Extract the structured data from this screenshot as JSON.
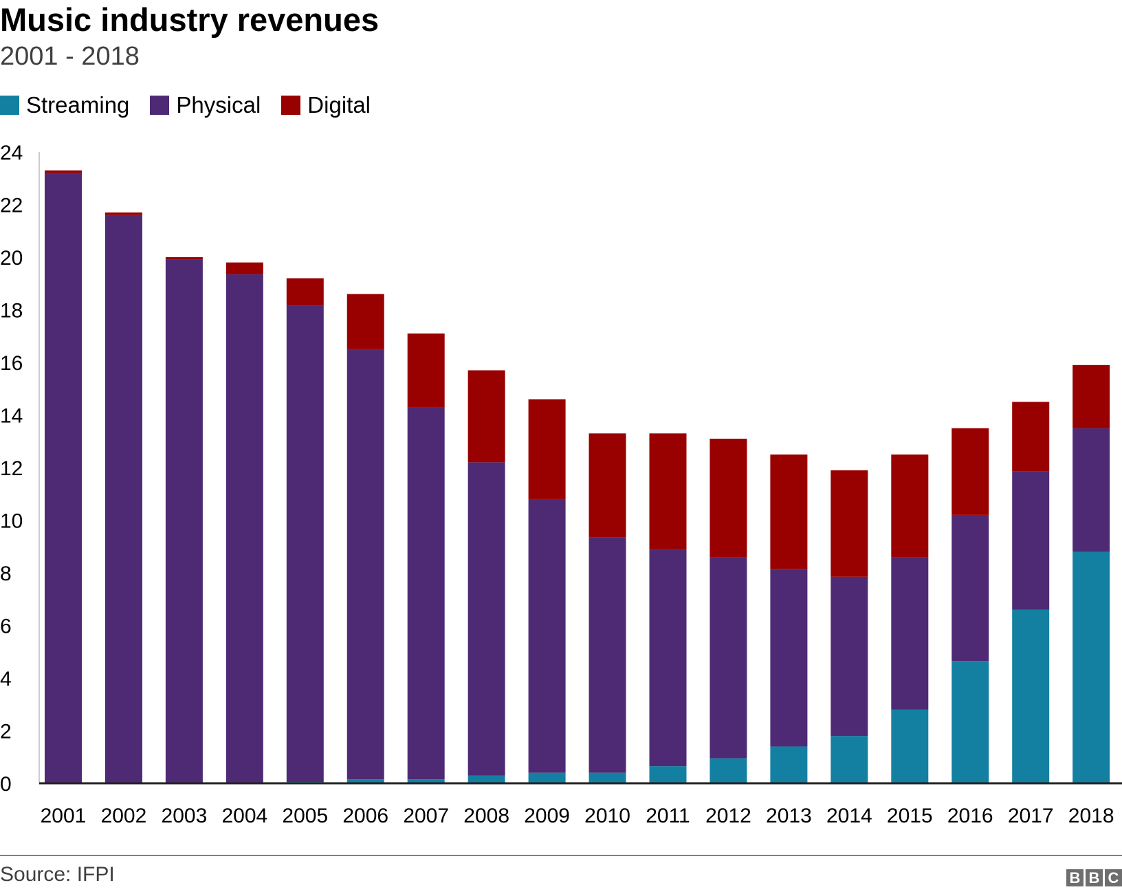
{
  "chart_data": {
    "type": "bar",
    "stacked": true,
    "title": "Music industry revenues",
    "subtitle": "2001 - 2018",
    "ylim": [
      0,
      24
    ],
    "yticks": [
      0,
      2,
      4,
      6,
      8,
      10,
      12,
      14,
      16,
      18,
      20,
      22,
      24
    ],
    "grid": false,
    "legend_position": "top-left",
    "categories": [
      "2001",
      "2002",
      "2003",
      "2004",
      "2005",
      "2006",
      "2007",
      "2008",
      "2009",
      "2010",
      "2011",
      "2012",
      "2013",
      "2014",
      "2015",
      "2016",
      "2017",
      "2018"
    ],
    "series": [
      {
        "name": "Streaming",
        "color": "#1380A1",
        "values": [
          0,
          0,
          0,
          0,
          0.05,
          0.15,
          0.15,
          0.3,
          0.4,
          0.4,
          0.65,
          0.95,
          1.4,
          1.8,
          2.8,
          4.65,
          6.6,
          8.8
        ]
      },
      {
        "name": "Physical",
        "color": "#4E2A75",
        "values": [
          23.2,
          21.6,
          19.9,
          19.35,
          18.1,
          16.35,
          14.15,
          11.9,
          10.4,
          8.95,
          8.25,
          7.65,
          6.75,
          6.05,
          5.8,
          5.55,
          5.25,
          4.7
        ]
      },
      {
        "name": "Digital",
        "color": "#990000",
        "values": [
          0.1,
          0.1,
          0.1,
          0.45,
          1.05,
          2.1,
          2.8,
          3.5,
          3.8,
          3.95,
          4.4,
          4.5,
          4.35,
          4.05,
          3.9,
          3.3,
          2.65,
          2.4
        ]
      }
    ]
  },
  "footer": {
    "source": "Source: IFPI",
    "logo": "BBC"
  }
}
